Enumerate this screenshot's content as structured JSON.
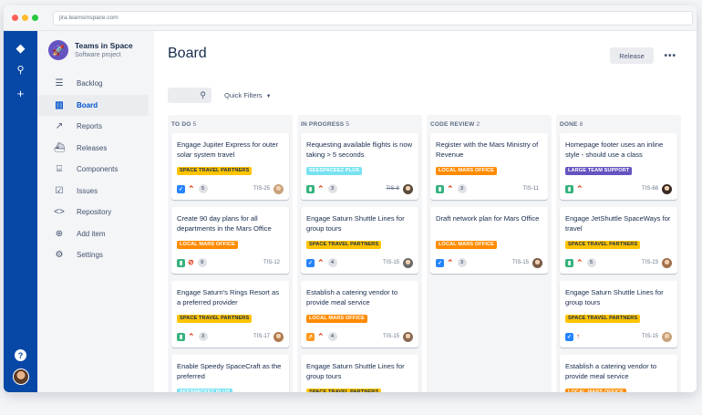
{
  "browser": {
    "url": "jira.teamsinspace.com"
  },
  "project": {
    "name": "Teams in Space",
    "type": "Software project"
  },
  "nav": [
    {
      "label": "Backlog",
      "icon": "backlog-icon",
      "glyph": "☰",
      "active": false
    },
    {
      "label": "Board",
      "icon": "board-icon",
      "glyph": "▥",
      "active": true
    },
    {
      "label": "Reports",
      "icon": "reports-icon",
      "glyph": "↗",
      "active": false
    },
    {
      "label": "Releases",
      "icon": "releases-icon",
      "glyph": "⛴",
      "active": false
    },
    {
      "label": "Components",
      "icon": "components-icon",
      "glyph": "⌸",
      "active": false
    },
    {
      "label": "Issues",
      "icon": "issues-icon",
      "glyph": "☑",
      "active": false
    },
    {
      "label": "Repository",
      "icon": "repository-icon",
      "glyph": "<>",
      "active": false
    },
    {
      "label": "Add item",
      "icon": "add-item-icon",
      "glyph": "⊕",
      "active": false
    },
    {
      "label": "Settings",
      "icon": "settings-icon",
      "glyph": "⚙",
      "active": false
    }
  ],
  "header": {
    "title": "Board",
    "release_label": "Release",
    "more_label": "•••"
  },
  "filters": {
    "quick_filters_label": "Quick Filters"
  },
  "colors": {
    "space_travel": "#ffc400",
    "local_mars": "#ff8b00",
    "seespaceez": "#79e2f2",
    "large_team": "#6554c0",
    "story": "#36b37e",
    "task": "#2684ff",
    "bug": "#ff5630",
    "improvement": "#ff991f",
    "prio_high": "#de350b"
  },
  "columns": [
    {
      "name": "TO DO",
      "count": "5",
      "cards": [
        {
          "title": "Engage Jupiter Express for outer solar system travel",
          "label": "SPACE TRAVEL PARTNERS",
          "label_color": "#ffc400",
          "label_text_color": "#172b4d",
          "type": "task",
          "priority": "high",
          "estimate": "5",
          "key": "TIS-25",
          "done": false,
          "avatar_color": "#c8a27c"
        },
        {
          "title": "Create 90 day plans for all departments in the Mars Office",
          "label": "LOCAL MARS OFFICE",
          "label_color": "#ff8b00",
          "label_text_color": "#ffffff",
          "type": "story",
          "priority": "blocker",
          "estimate": "9",
          "key": "TIS-12",
          "done": false,
          "avatar_color": ""
        },
        {
          "title": "Engage Saturn's Rings Resort as a preferred provider",
          "label": "SPACE TRAVEL PARTNERS",
          "label_color": "#ffc400",
          "label_text_color": "#172b4d",
          "type": "story",
          "priority": "high",
          "estimate": "3",
          "key": "TIS-17",
          "done": false,
          "avatar_color": "#b07a4f"
        },
        {
          "title": "Enable Speedy SpaceCraft as the preferred",
          "label": "SEESPACEEZ PLUS",
          "label_color": "#79e2f2",
          "label_text_color": "#ffffff",
          "type": "task",
          "priority": "high",
          "estimate": "",
          "key": "",
          "done": false,
          "avatar_color": ""
        }
      ]
    },
    {
      "name": "IN PROGRESS",
      "count": "5",
      "cards": [
        {
          "title": "Requesting available flights is now taking > 5 seconds",
          "label": "SEESPACEEZ PLUS",
          "label_color": "#79e2f2",
          "label_text_color": "#ffffff",
          "type": "story",
          "priority": "high",
          "estimate": "3",
          "key": "TIS-8",
          "done": true,
          "avatar_color": "#5a4a3a"
        },
        {
          "title": "Engage Saturn Shuttle Lines for group tours",
          "label": "SPACE TRAVEL PARTNERS",
          "label_color": "#ffc400",
          "label_text_color": "#172b4d",
          "type": "task",
          "priority": "high",
          "estimate": "4",
          "key": "TIS-15",
          "done": false,
          "avatar_color": "#6b6b6b"
        },
        {
          "title": "Establish a catering vendor to provide meal service",
          "label": "LOCAL MARS OFFICE",
          "label_color": "#ff8b00",
          "label_text_color": "#ffffff",
          "type": "improvement",
          "priority": "high",
          "estimate": "4",
          "key": "TIS-15",
          "done": false,
          "avatar_color": "#8a6a55"
        },
        {
          "title": "Engage Saturn Shuttle Lines for group tours",
          "label": "SPACE TRAVEL PARTNERS",
          "label_color": "#ffc400",
          "label_text_color": "#172b4d",
          "type": "task",
          "priority": "high",
          "estimate": "",
          "key": "",
          "done": false,
          "avatar_color": ""
        }
      ]
    },
    {
      "name": "CODE REVIEW",
      "count": "2",
      "cards": [
        {
          "title": "Register with the Mars Ministry of Revenue",
          "label": "LOCAL MARS OFFICE",
          "label_color": "#ff8b00",
          "label_text_color": "#ffffff",
          "type": "story",
          "priority": "high",
          "estimate": "3",
          "key": "TIS-11",
          "done": false,
          "avatar_color": ""
        },
        {
          "title": "Draft network plan for Mars Office",
          "label": "LOCAL MARS OFFICE",
          "label_color": "#ff8b00",
          "label_text_color": "#ffffff",
          "type": "task",
          "priority": "high",
          "estimate": "3",
          "key": "TIS-15",
          "done": false,
          "avatar_color": "#7a5a48"
        }
      ]
    },
    {
      "name": "DONE",
      "count": "8",
      "cards": [
        {
          "title": "Homepage footer uses an inline style - should use a class",
          "label": "LARGE TEAM SUPPORT",
          "label_color": "#6554c0",
          "label_text_color": "#ffffff",
          "type": "story",
          "priority": "high",
          "estimate": "",
          "key": "TIS-68",
          "done": false,
          "avatar_color": "#3a2a22"
        },
        {
          "title": "Engage JetShuttle SpaceWays for travel",
          "label": "SPACE TRAVEL PARTNERS",
          "label_color": "#ffc400",
          "label_text_color": "#172b4d",
          "type": "story",
          "priority": "high",
          "estimate": "5",
          "key": "TIS-23",
          "done": false,
          "avatar_color": "#a0704c"
        },
        {
          "title": "Engage Saturn Shuttle Lines for group tours",
          "label": "SPACE TRAVEL PARTNERS",
          "label_color": "#ffc400",
          "label_text_color": "#172b4d",
          "type": "task",
          "priority": "highest",
          "estimate": "",
          "key": "TIS-15",
          "done": false,
          "avatar_color": "#c8a27c"
        },
        {
          "title": "Establish a catering vendor to provide meal service",
          "label": "LOCAL MARS OFFICE",
          "label_color": "#ff8b00",
          "label_text_color": "#ffffff",
          "type": "story",
          "priority": "high",
          "estimate": "",
          "key": "",
          "done": false,
          "avatar_color": ""
        }
      ]
    }
  ]
}
